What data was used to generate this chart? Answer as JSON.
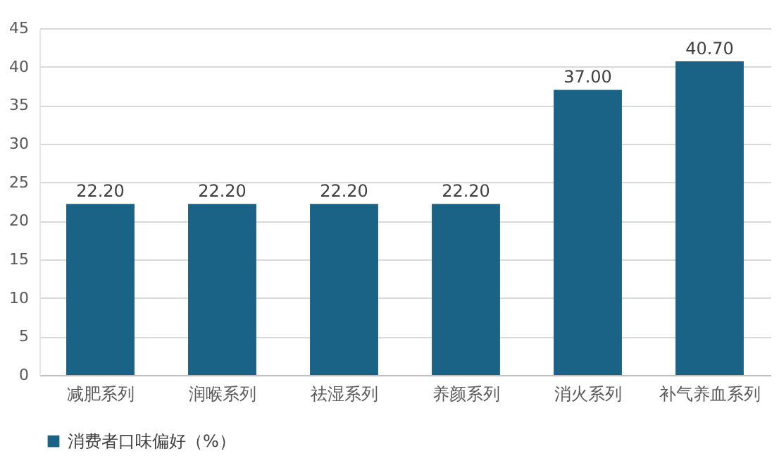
{
  "chart_data": {
    "type": "bar",
    "categories": [
      "减肥系列",
      "润喉系列",
      "祛湿系列",
      "养颜系列",
      "消火系列",
      "补气养血系列"
    ],
    "series": [
      {
        "name": "消费者口味偏好（%）",
        "color": "#1b6386",
        "values": [
          22.2,
          22.2,
          22.2,
          22.2,
          37.0,
          40.7
        ]
      }
    ],
    "value_labels": [
      "22.20",
      "22.20",
      "22.20",
      "22.20",
      "37.00",
      "40.70"
    ],
    "ylim": [
      0,
      45
    ],
    "yticks": [
      0,
      5,
      10,
      15,
      20,
      25,
      30,
      35,
      40,
      45
    ],
    "grid": "y",
    "legend": "bottom"
  }
}
